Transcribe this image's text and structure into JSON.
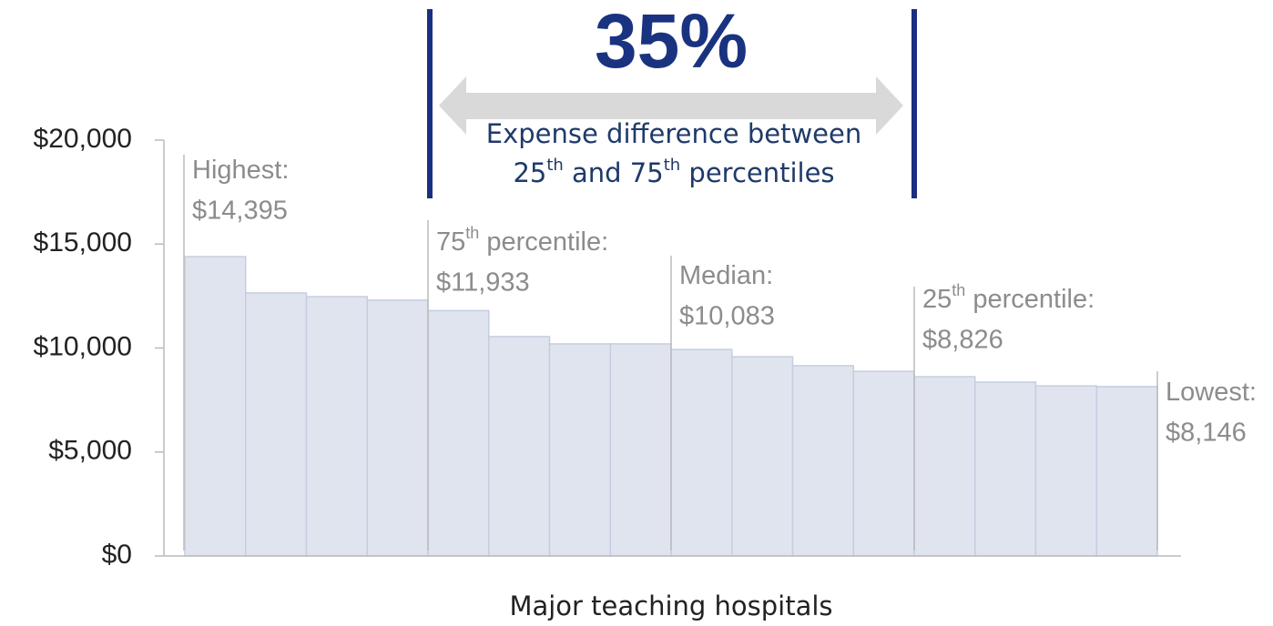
{
  "chart_data": {
    "type": "bar",
    "headline": "35%",
    "caption": [
      "Expense difference between",
      "25",
      "th",
      " and 75",
      "th",
      " percentiles"
    ],
    "x_label": "Major teaching hospitals",
    "categories": [
      null,
      null,
      null,
      null,
      null,
      null,
      null,
      null,
      null,
      null,
      null,
      null,
      null,
      null,
      null,
      null
    ],
    "values": [
      14395,
      12650,
      12470,
      12300,
      11800,
      10550,
      10200,
      10200,
      9930,
      9580,
      9150,
      8880,
      8620,
      8360,
      8180,
      8146
    ],
    "color": "#dfe4ef",
    "ylim": [
      0,
      20000
    ],
    "yticks": [
      {
        "value": 0,
        "label": "$0"
      },
      {
        "value": 5000,
        "label": "$5,000"
      },
      {
        "value": 10000,
        "label": "$10,000"
      },
      {
        "value": 15000,
        "label": "$15,000"
      },
      {
        "value": 20000,
        "label": "$20,000"
      }
    ],
    "grid": false,
    "annotations": [
      {
        "label": [
          "Highest:"
        ],
        "value_label": "$14,395"
      },
      {
        "label": [
          "75",
          "th",
          " percentile:"
        ],
        "value_label": "$11,933"
      },
      {
        "label": [
          "Median:"
        ],
        "value_label": "$10,083"
      },
      {
        "label": [
          "25",
          "th",
          " percentile:"
        ],
        "value_label": "$8,826"
      },
      {
        "label": [
          "Lowest:"
        ],
        "value_label": "$8,146"
      }
    ]
  }
}
